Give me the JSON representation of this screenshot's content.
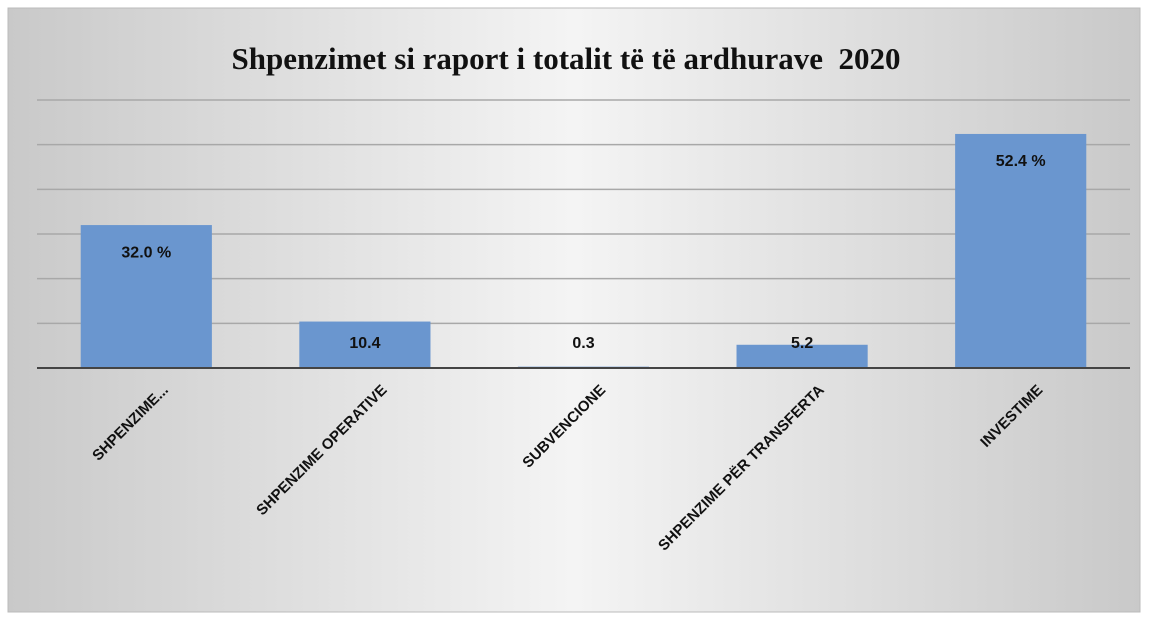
{
  "chart_data": {
    "type": "bar",
    "title": "Shpenzimet si raport i totalit të të ardhurave  2020",
    "categories": [
      "SHPENZIME...",
      "SHPENZIME OPERATIVE",
      "SUBVENCIONE",
      "SHPENZIME PËR TRANSFERTA",
      "INVESTIME"
    ],
    "values": [
      32.0,
      10.4,
      0.3,
      5.2,
      52.4
    ],
    "value_labels": [
      "32.0 %",
      "10.4",
      "0.3",
      "5.2",
      "52.4 %"
    ],
    "color": "#6a96cf",
    "ylim": [
      0,
      60
    ],
    "yticks": [
      0,
      10,
      20,
      30,
      40,
      50,
      60
    ],
    "grid": true
  }
}
